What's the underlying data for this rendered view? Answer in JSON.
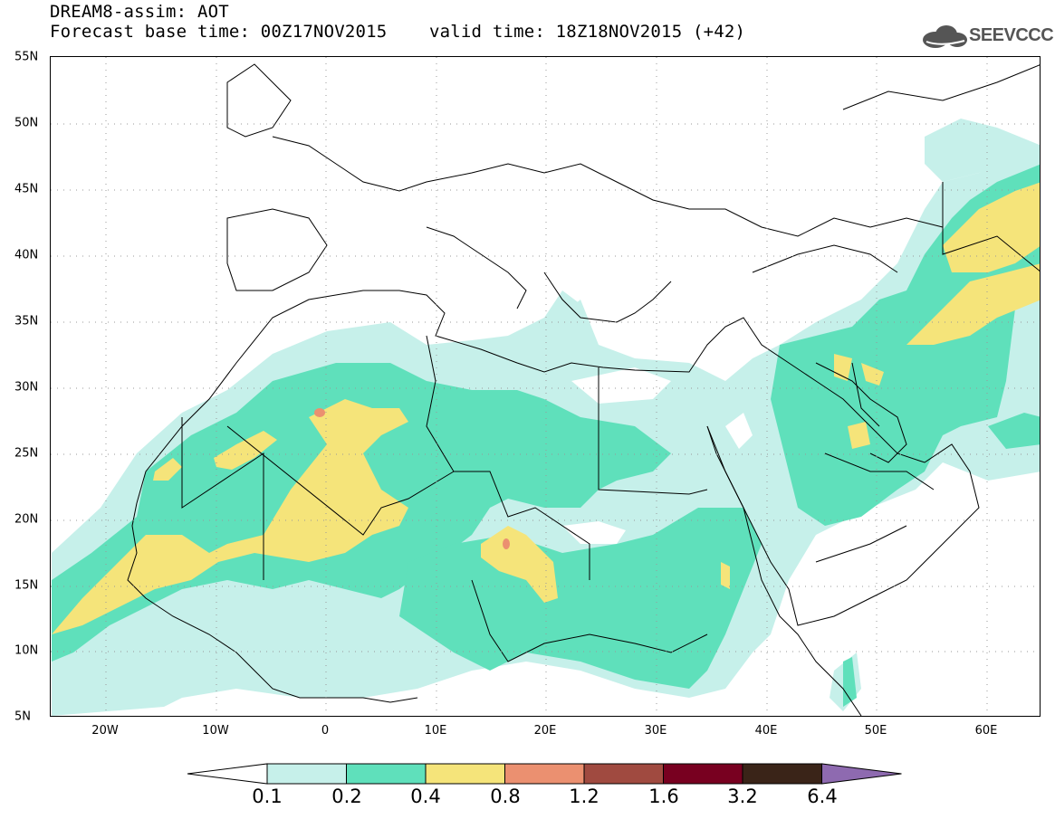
{
  "header": {
    "title_line1": "DREAM8-assim: AOT",
    "title_line2": "Forecast base time: 00Z17NOV2015    valid time: 18Z18NOV2015 (+42)",
    "logo_text": "SEEVCCC"
  },
  "map": {
    "lat_labels": [
      "55N",
      "50N",
      "45N",
      "40N",
      "35N",
      "30N",
      "25N",
      "20N",
      "15N",
      "10N",
      "5N"
    ],
    "lon_labels": [
      "20W",
      "10W",
      "0",
      "10E",
      "20E",
      "30E",
      "40E",
      "50E",
      "60E"
    ]
  },
  "legend": {
    "labels": [
      "0.1",
      "0.2",
      "0.4",
      "0.8",
      "1.2",
      "1.6",
      "3.2",
      "6.4"
    ],
    "colors": [
      "#ffffff",
      "#c6f0ea",
      "#5fe0bb",
      "#f5e47a",
      "#eb9070",
      "#a04a40",
      "#780020",
      "#3a2418",
      "#8e6ab0"
    ]
  }
}
